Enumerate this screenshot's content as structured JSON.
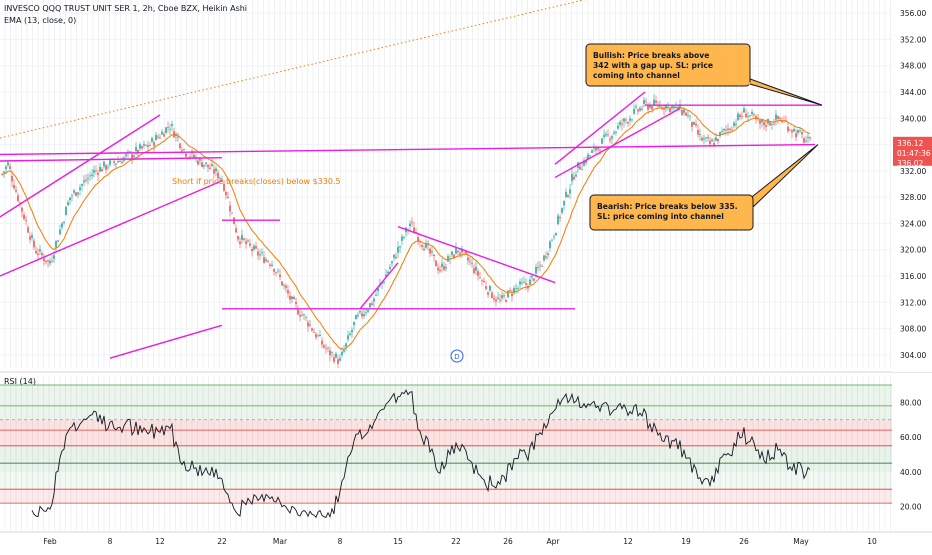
{
  "header": {
    "symbol_line": "INVESCO QQQ TRUST UNIT SER 1, 2h, Cboe BZX, Heikin Ashi",
    "indicator_line": "EMA (13, close, 0)"
  },
  "rsi_panel": {
    "label": "RSI (14)"
  },
  "colors": {
    "bull": "#26a69a",
    "bear": "#ef5350",
    "ema": "#f57c00",
    "trendline": "#e91ee0",
    "callout_fill": "#ffb74d",
    "callout_border": "#131722",
    "rsi_line": "#131722",
    "rsi_band_red": "#e53935",
    "rsi_band_green": "#43a047",
    "price_tag": "#ef5350"
  },
  "chart_data": {
    "type": "candlestick",
    "price_axis": {
      "min": 302,
      "max": 358,
      "ticks": [
        "304.00",
        "308.00",
        "312.00",
        "316.00",
        "320.00",
        "324.00",
        "328.00",
        "332.00",
        "336.00",
        "340.00",
        "344.00",
        "348.00",
        "352.00",
        "356.00"
      ]
    },
    "current_price": {
      "price": "336.12",
      "countdown": "01:47:36",
      "ema": "336.02"
    },
    "time_axis": [
      "Feb",
      "8",
      "12",
      "22",
      "Mar",
      "8",
      "15",
      "22",
      "26",
      "Apr",
      "12",
      "19",
      "26",
      "May",
      "10"
    ],
    "trendlines": [
      {
        "from": [
          "Feb-start",
          325
        ],
        "to": [
          "Feb-12",
          340.5
        ]
      },
      {
        "from": [
          "Feb-start",
          316
        ],
        "to": [
          "Feb-22",
          330.5
        ]
      },
      {
        "from": [
          "Feb-start",
          333.5
        ],
        "to": [
          "Feb-22",
          334
        ]
      },
      {
        "from": [
          "Feb-start",
          334.5
        ],
        "to": [
          "Apr-29",
          336
        ]
      },
      {
        "from": [
          "Feb-8",
          303.5
        ],
        "to": [
          "Feb-22",
          308.5
        ]
      },
      {
        "from": [
          "Feb-22",
          324.5
        ],
        "to": [
          "Mar-1",
          324.5
        ]
      },
      {
        "from": [
          "Feb-22",
          311
        ],
        "to": [
          "Apr-5",
          311
        ]
      },
      {
        "from": [
          "Mar-10",
          311
        ],
        "to": [
          "Mar-15",
          318
        ]
      },
      {
        "from": [
          "Mar-15",
          323.5
        ],
        "to": [
          "Mar-29",
          315
        ]
      },
      {
        "from": [
          "Mar-29",
          333
        ],
        "to": [
          "Apr-14",
          344
        ]
      },
      {
        "from": [
          "Mar-29",
          331
        ],
        "to": [
          "Apr-17",
          341.5
        ]
      },
      {
        "from": [
          "Apr-14",
          342
        ],
        "to": [
          "May-3",
          342
        ]
      }
    ],
    "ema_period": 13,
    "rsi": {
      "period": 14,
      "axis_ticks": [
        "20.00",
        "40.00",
        "60.00",
        "80.00"
      ],
      "overbought": 70,
      "oversold": 30
    }
  },
  "annotations": {
    "short_note": "Short if price breaks(closes) below $330.5",
    "bullish": "Bullish: Price breaks above 342 with a gap up. SL: price coming into channel",
    "bearish": "Bearish: Price breaks below 335. SL: price coming into channel",
    "event_marker": "D"
  }
}
